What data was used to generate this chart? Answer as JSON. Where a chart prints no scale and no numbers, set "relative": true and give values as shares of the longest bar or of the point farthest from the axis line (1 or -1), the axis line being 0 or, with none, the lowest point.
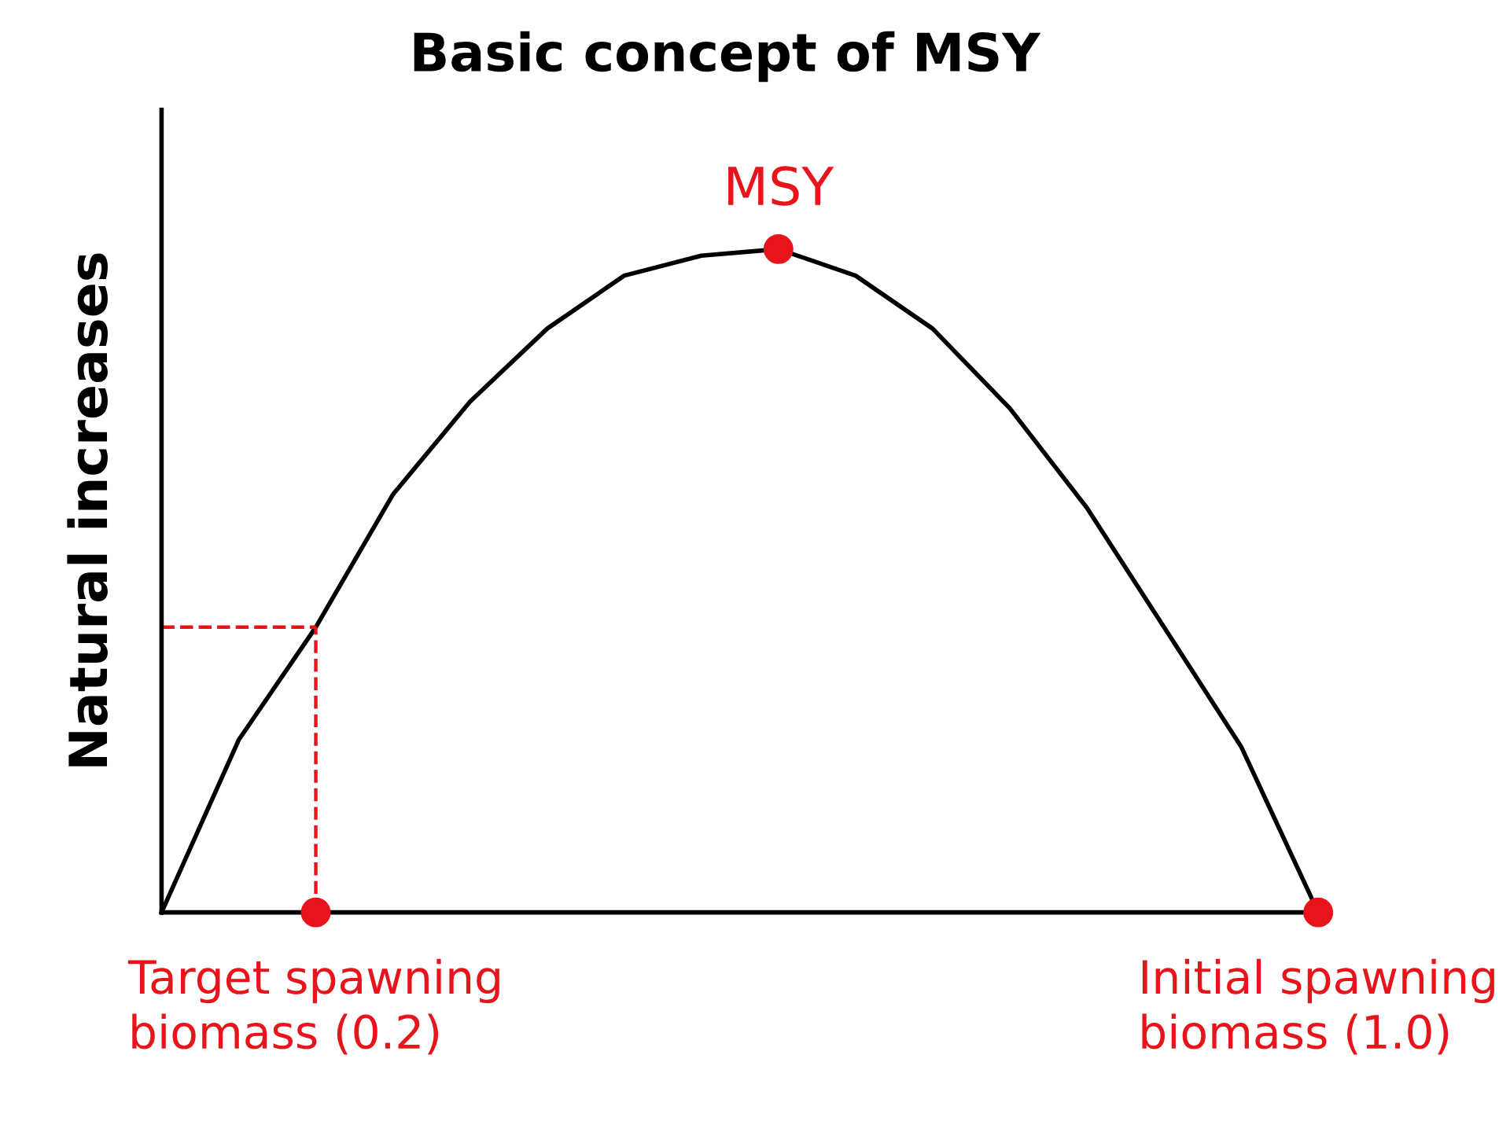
{
  "chart_data": {
    "type": "line",
    "title": "Basic concept of MSY",
    "ylabel": "Natural increases",
    "relative": true,
    "categories": [
      null,
      null,
      null,
      null,
      null,
      null,
      null,
      null,
      null,
      null,
      null,
      null,
      null,
      null,
      null,
      null
    ],
    "series": [
      {
        "color": "#000000",
        "values": [
          0,
          0.26,
          0.43,
          0.63,
          0.77,
          0.88,
          0.96,
          0.99,
          1.0,
          0.96,
          0.88,
          0.76,
          0.61,
          0.43,
          0.25,
          0
        ]
      }
    ],
    "annotations": [
      {
        "text": "MSY",
        "y": 1.0
      },
      {
        "text": "Target spawning\nbiomass (0.2)",
        "y": 0
      },
      {
        "text": "Initial spawning\nbiomass (1.0)",
        "y": 0
      }
    ],
    "ref_lines": [
      {
        "axis": "y",
        "value": 0.43,
        "color": "#e8141b",
        "line_style": "dashed"
      }
    ],
    "grid": false,
    "legend": false
  }
}
